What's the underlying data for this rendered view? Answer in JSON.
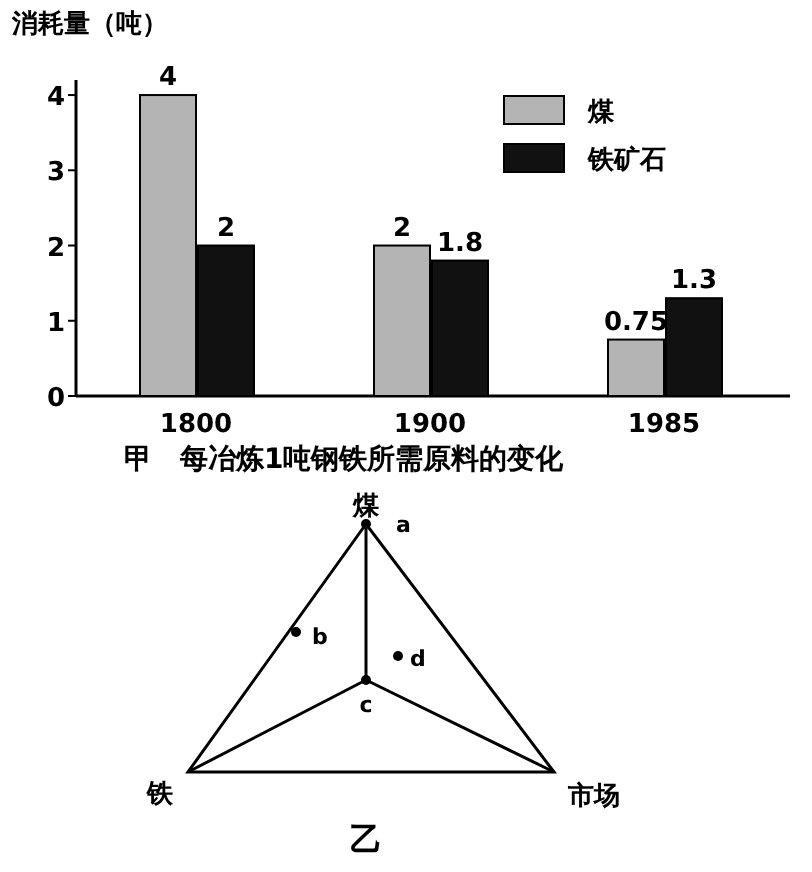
{
  "chart_data": [
    {
      "type": "bar",
      "title": "每冶炼1吨钢铁所需原料的变化",
      "subtitle": "甲",
      "ylabel": "消耗量（吨）",
      "categories": [
        "1800",
        "1900",
        "1985"
      ],
      "series": [
        {
          "name": "煤",
          "color": "#b4b4b4",
          "values": [
            4,
            2,
            0.75
          ]
        },
        {
          "name": "铁矿石",
          "color": "#111111",
          "values": [
            2,
            1.8,
            1.3
          ]
        }
      ],
      "ylim": [
        0,
        4.2
      ],
      "yticks": [
        0,
        1,
        2,
        3,
        4
      ],
      "data_labels": true,
      "legend": "top right"
    },
    {
      "type": "other",
      "title": "乙",
      "annotations": [
        "煤",
        "铁",
        "市场",
        "a",
        "b",
        "c",
        "d"
      ]
    }
  ]
}
